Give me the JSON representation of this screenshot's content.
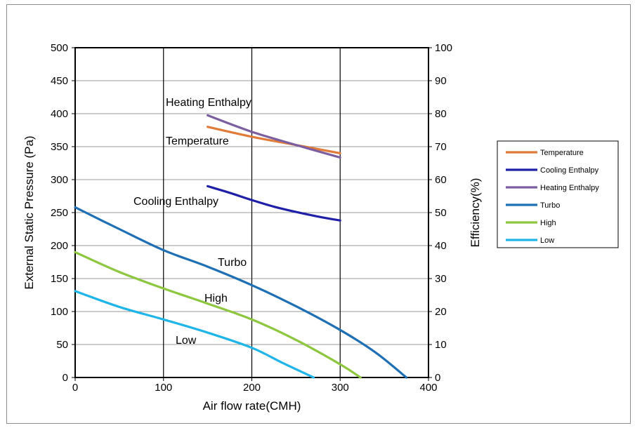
{
  "chart_data": {
    "type": "line",
    "xlabel": "Air flow rate(CMH)",
    "ylabel": "External Static Pressure (Pa)",
    "y2label": "Efficiency(%)",
    "xlim": [
      0,
      400
    ],
    "ylim": [
      0,
      500
    ],
    "y2lim": [
      0,
      100
    ],
    "xticks": [
      "0",
      "100",
      "200",
      "300",
      "400"
    ],
    "yticks": [
      "0",
      "50",
      "100",
      "150",
      "200",
      "250",
      "300",
      "350",
      "400",
      "450",
      "500"
    ],
    "y2ticks": [
      "0",
      "10",
      "20",
      "30",
      "40",
      "50",
      "60",
      "70",
      "80",
      "90",
      "100"
    ],
    "grid": "x-major-lines",
    "legend_position": "right",
    "series": [
      {
        "name": "Temperature",
        "axis": "right",
        "color": "#E07B39",
        "x": [
          150,
          200,
          250,
          300
        ],
        "y": [
          76,
          73,
          70.5,
          68
        ]
      },
      {
        "name": "Cooling Enthalpy",
        "axis": "right",
        "color": "#1F1FA8",
        "x": [
          150,
          175,
          200,
          225,
          250,
          275,
          300
        ],
        "y": [
          58,
          56,
          53.8,
          51.8,
          50.2,
          48.8,
          47.6
        ]
      },
      {
        "name": "Heating Enthalpy",
        "axis": "right",
        "color": "#7B5FA0",
        "x": [
          150,
          200,
          250,
          300
        ],
        "y": [
          79.5,
          74.5,
          70.5,
          66.7
        ]
      },
      {
        "name": "Turbo",
        "axis": "left",
        "color": "#1F6FB5",
        "x": [
          0,
          50,
          100,
          150,
          200,
          250,
          300,
          340,
          375
        ],
        "y": [
          258,
          225,
          193,
          168,
          140,
          108,
          72,
          38,
          0
        ]
      },
      {
        "name": "High",
        "axis": "left",
        "color": "#8DC63F",
        "x": [
          0,
          50,
          100,
          150,
          200,
          250,
          300,
          323
        ],
        "y": [
          190,
          160,
          135,
          112,
          88,
          57,
          20,
          0
        ]
      },
      {
        "name": "Low",
        "axis": "left",
        "color": "#1FB5E8",
        "x": [
          0,
          50,
          100,
          150,
          200,
          235,
          270
        ],
        "y": [
          131,
          107,
          88,
          68,
          45,
          22,
          0
        ]
      }
    ],
    "annotations": [
      {
        "text": "Heating Enthalpy"
      },
      {
        "text": "Temperature"
      },
      {
        "text": "Cooling Enthalpy"
      },
      {
        "text": "Turbo"
      },
      {
        "text": "High"
      },
      {
        "text": "Low"
      }
    ]
  }
}
